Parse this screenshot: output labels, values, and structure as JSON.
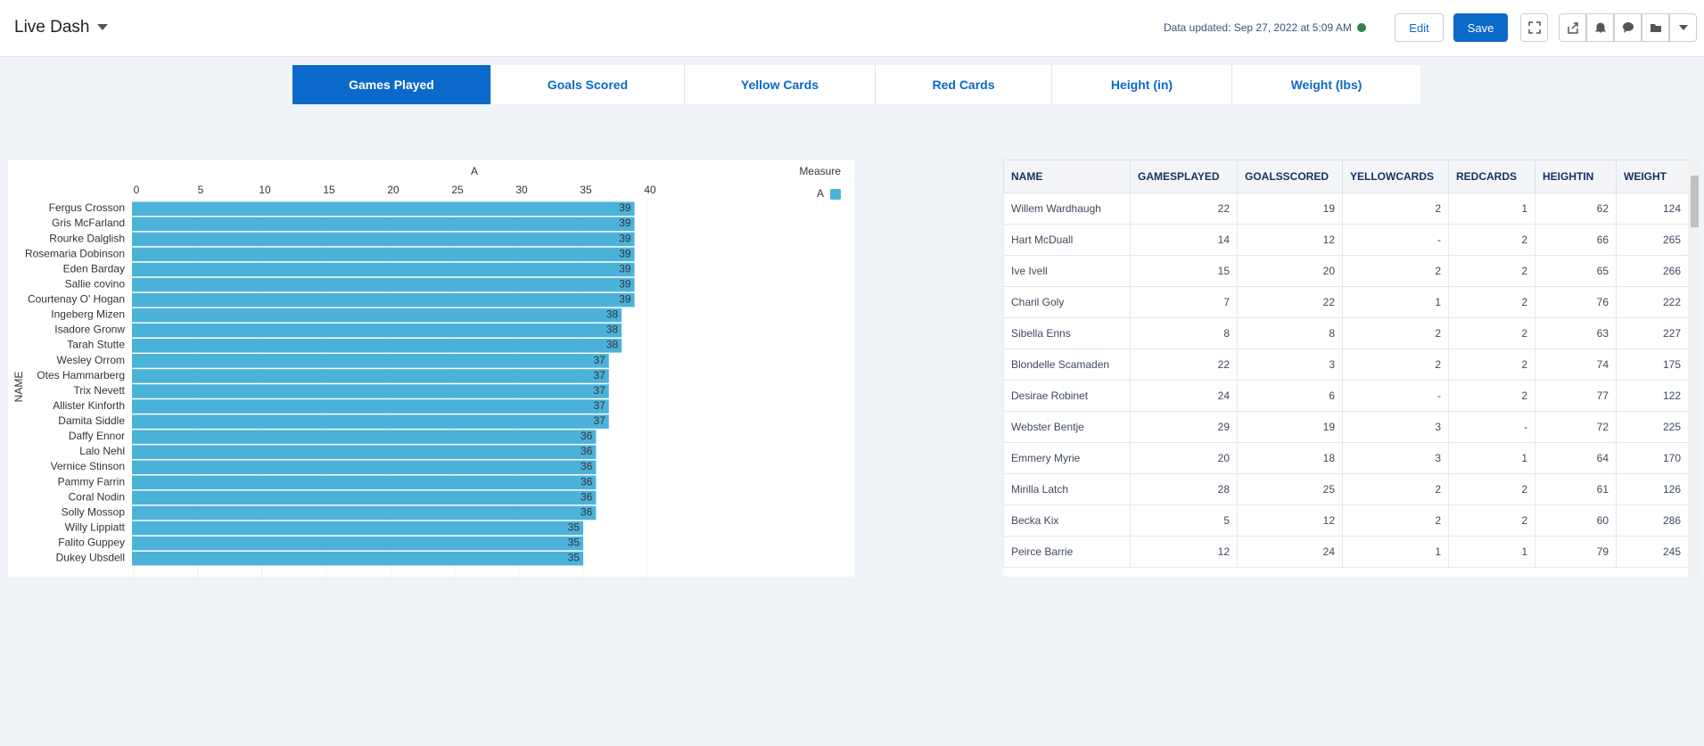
{
  "header": {
    "title": "Live Dash",
    "status": "Data updated: Sep 27, 2022 at 5:09 AM",
    "buttons": [
      "Edit",
      "Save"
    ]
  },
  "tabs": [
    "Games Played",
    "Goals Scored",
    "Yellow Cards",
    "Red Cards",
    "Height (in)",
    "Weight (lbs)"
  ],
  "chart_data": {
    "type": "hbar",
    "x_label": "A",
    "y_label": "NAME",
    "legend_title": "Measure",
    "categories": [
      "Fergus Crosson",
      "Gris McFarland",
      "Rourke Dalglish",
      "Rosemaria Dobinson",
      "Eden Barday",
      "Sallie covino",
      "Courtenay O' Hogan",
      "Ingeberg Mizen",
      "Isadore Gronw",
      "Tarah Stutte",
      "Wesley Orrom",
      "Otes Hammarberg",
      "Trix Nevett",
      "Allister Kinforth",
      "Damita Siddle",
      "Daffy Ennor",
      "Lalo Nehl",
      "Vernice Stinson",
      "Pammy Farrin",
      "Coral Nodin",
      "Solly Mossop",
      "Willy Lippiatt",
      "Falito Guppey",
      "Dukey Ubsdell"
    ],
    "series": [
      {
        "name": "A",
        "color": "#4bb2da",
        "values": [
          39,
          39,
          39,
          39,
          39,
          39,
          39,
          38,
          38,
          38,
          37,
          37,
          37,
          37,
          37,
          36,
          36,
          36,
          36,
          36,
          36,
          35,
          35,
          35
        ]
      }
    ],
    "xlim": [
      0,
      40
    ],
    "xticks": [
      0,
      5,
      10,
      15,
      20,
      25,
      30,
      35,
      40
    ],
    "grid": true
  },
  "table": {
    "columns": [
      "NAME",
      "GAMESPLAYED",
      "GOALSSCORED",
      "YELLOWCARDS",
      "REDCARDS",
      "HEIGHTIN",
      "WEIGHT"
    ],
    "rows": [
      [
        "Willem Wardhaugh",
        22,
        19,
        2,
        1,
        62,
        124
      ],
      [
        "Hart McDuall",
        14,
        12,
        "-",
        2,
        66,
        265
      ],
      [
        "Ive Ivell",
        15,
        20,
        2,
        2,
        65,
        266
      ],
      [
        "Charil Goly",
        7,
        22,
        1,
        2,
        76,
        222
      ],
      [
        "Sibella Enns",
        8,
        8,
        2,
        2,
        63,
        227
      ],
      [
        "Blondelle Scamaden",
        22,
        3,
        2,
        2,
        74,
        175
      ],
      [
        "Desirae Robinet",
        24,
        6,
        "-",
        2,
        77,
        122
      ],
      [
        "Webster Bentje",
        29,
        19,
        3,
        "-",
        72,
        225
      ],
      [
        "Emmery Myrie",
        20,
        18,
        3,
        1,
        64,
        170
      ],
      [
        "Mirilla Latch",
        28,
        25,
        2,
        2,
        61,
        126
      ],
      [
        "Becka Kix",
        5,
        12,
        2,
        2,
        60,
        286
      ],
      [
        "Peirce Barrie",
        12,
        24,
        1,
        1,
        79,
        245
      ]
    ]
  }
}
